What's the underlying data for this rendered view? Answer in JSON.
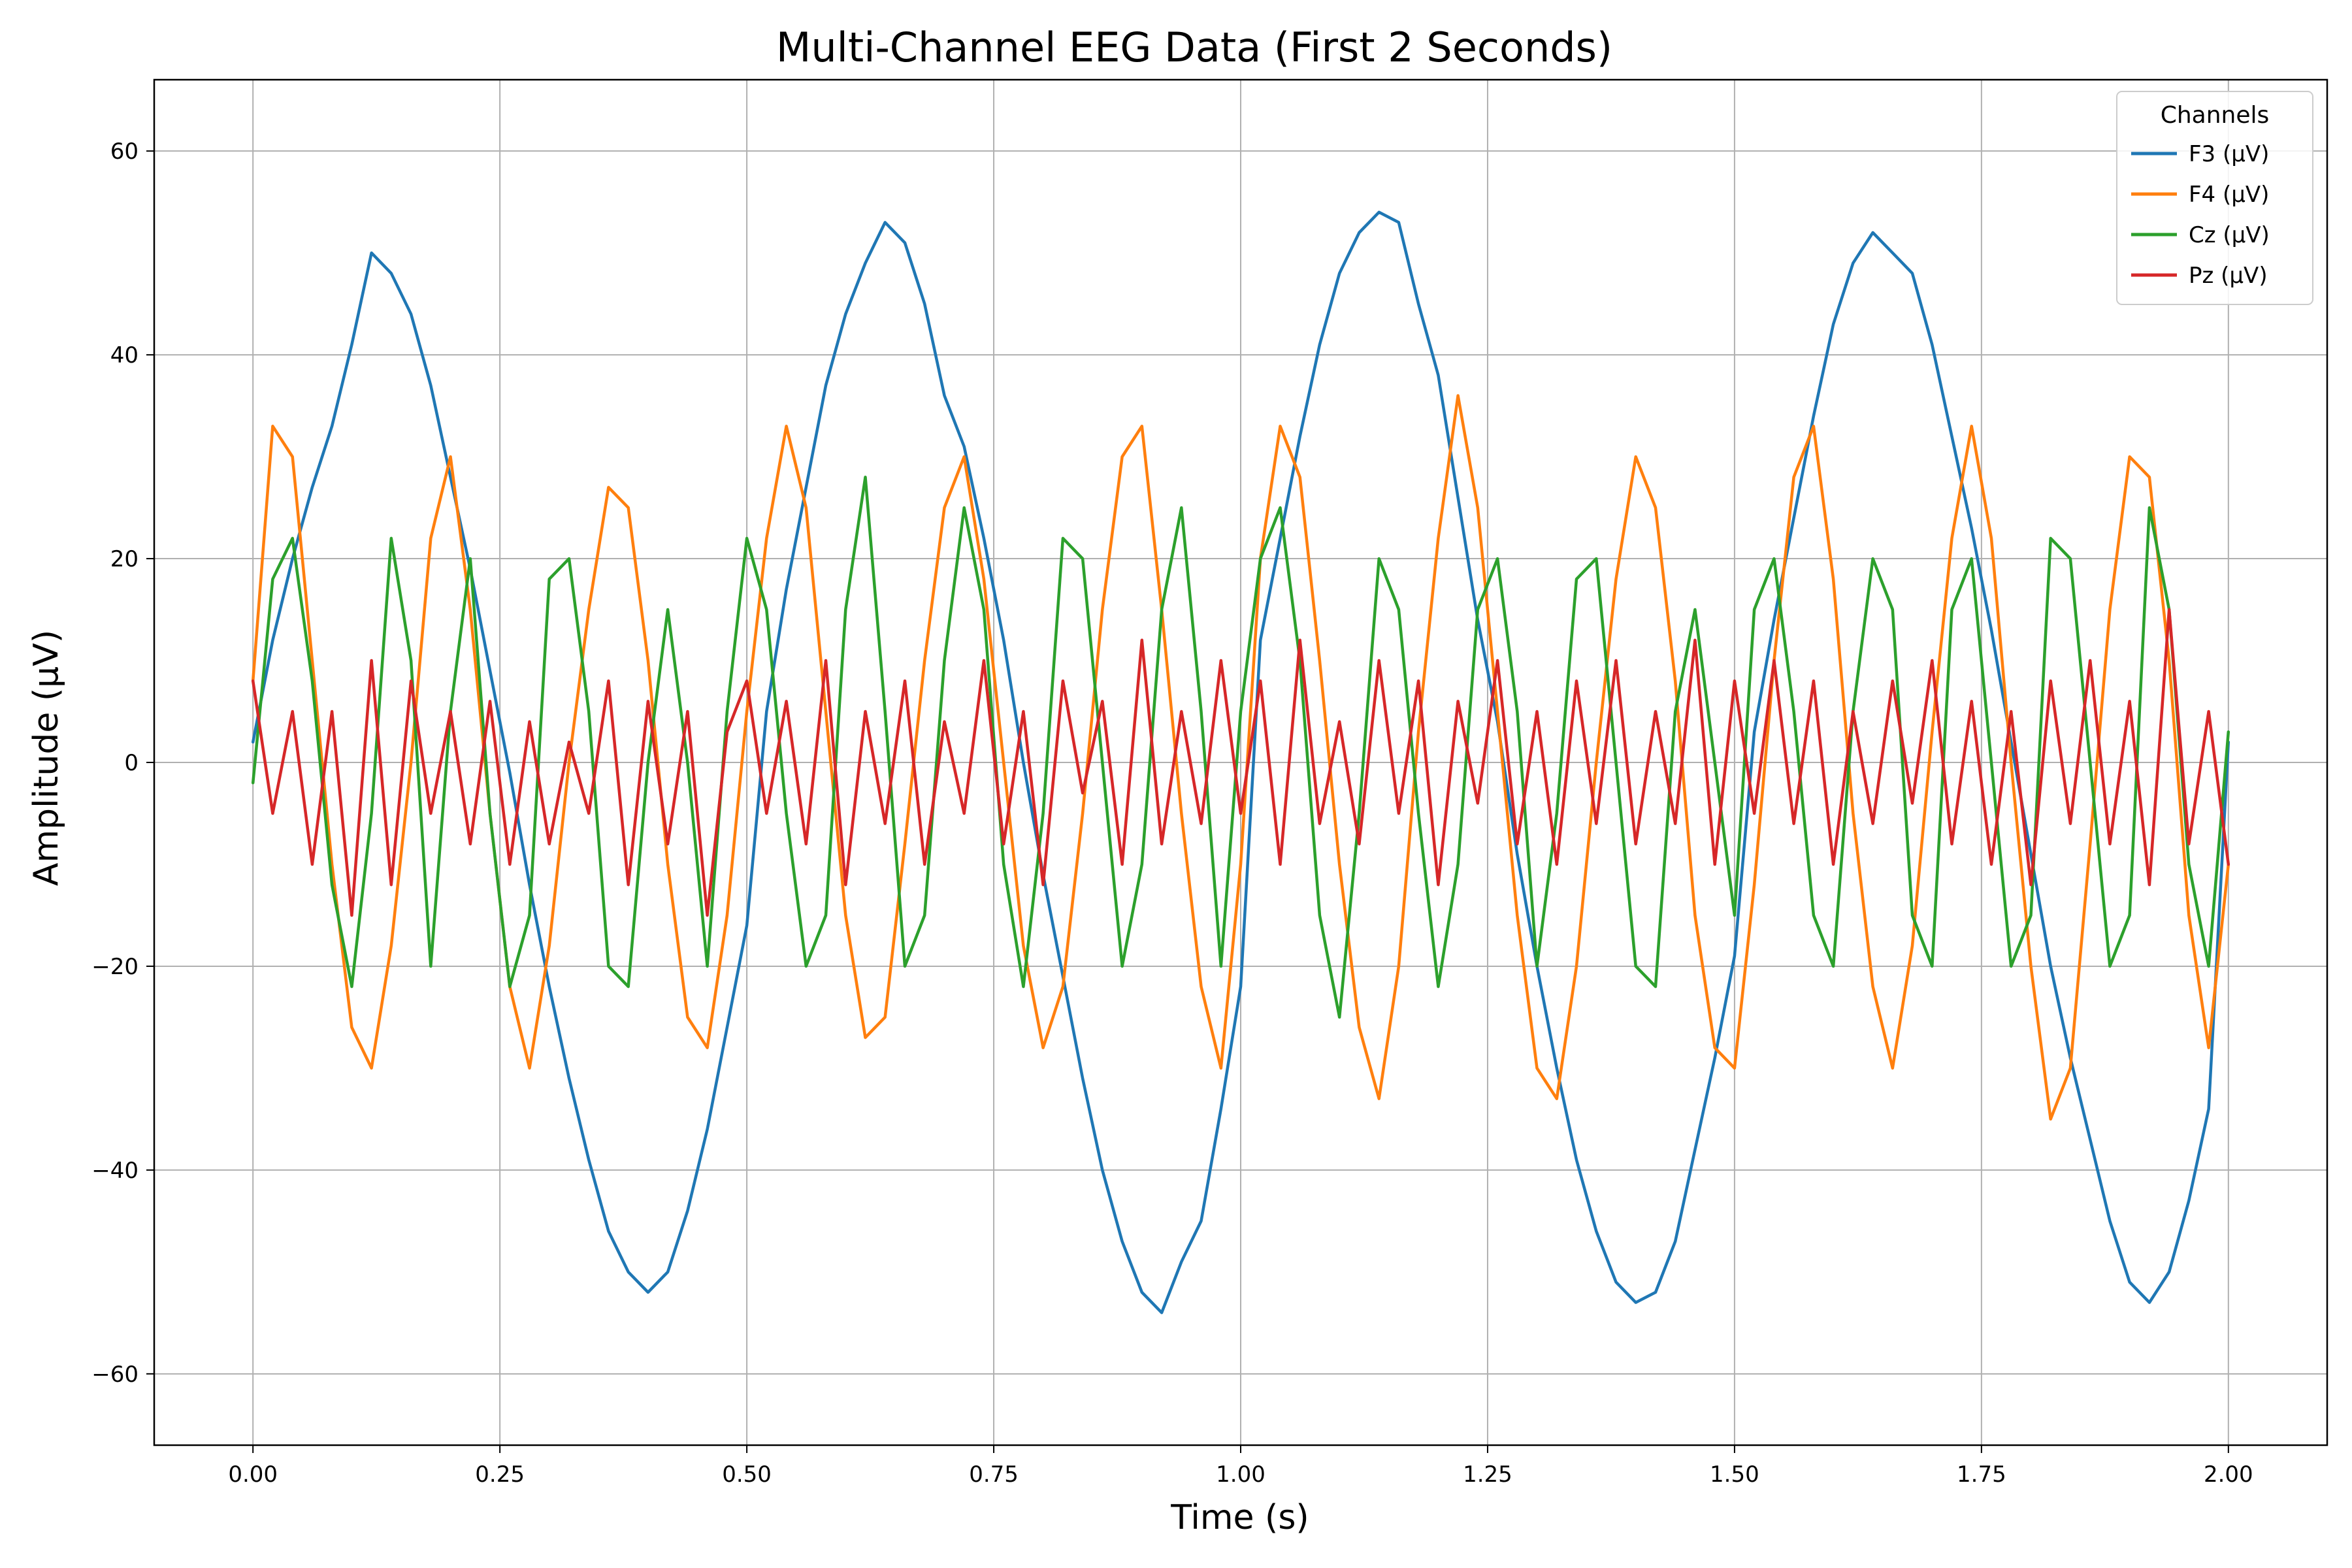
{
  "chart_data": {
    "type": "line",
    "title": "Multi-Channel EEG Data (First 2 Seconds)",
    "xlabel": "Time (s)",
    "ylabel": "Amplitude (µV)",
    "xlim": [
      -0.1,
      2.1
    ],
    "ylim": [
      -67,
      67
    ],
    "x_ticks": [
      0.0,
      0.25,
      0.5,
      0.75,
      1.0,
      1.25,
      1.5,
      1.75,
      2.0
    ],
    "x_tick_labels": [
      "0.00",
      "0.25",
      "0.50",
      "0.75",
      "1.00",
      "1.25",
      "1.50",
      "1.75",
      "2.00"
    ],
    "y_ticks": [
      -60,
      -40,
      -20,
      0,
      20,
      40,
      60
    ],
    "y_tick_labels": [
      "−60",
      "−40",
      "−20",
      "0",
      "20",
      "40",
      "60"
    ],
    "grid": true,
    "legend": {
      "title": "Channels",
      "placement": "top-right"
    },
    "x": [
      0.0,
      0.02,
      0.04,
      0.06,
      0.08,
      0.1,
      0.12,
      0.14,
      0.16,
      0.18,
      0.2,
      0.22,
      0.24,
      0.26,
      0.28,
      0.3,
      0.32,
      0.34,
      0.36,
      0.38,
      0.4,
      0.42,
      0.44,
      0.46,
      0.48,
      0.5,
      0.52,
      0.54,
      0.56,
      0.58,
      0.6,
      0.62,
      0.64,
      0.66,
      0.68,
      0.7,
      0.72,
      0.74,
      0.76,
      0.78,
      0.8,
      0.82,
      0.84,
      0.86,
      0.88,
      0.9,
      0.92,
      0.94,
      0.96,
      0.98,
      1.0,
      1.02,
      1.04,
      1.06,
      1.08,
      1.1,
      1.12,
      1.14,
      1.16,
      1.18,
      1.2,
      1.22,
      1.24,
      1.26,
      1.28,
      1.3,
      1.32,
      1.34,
      1.36,
      1.38,
      1.4,
      1.42,
      1.44,
      1.46,
      1.48,
      1.5,
      1.52,
      1.54,
      1.56,
      1.58,
      1.6,
      1.62,
      1.64,
      1.66,
      1.68,
      1.7,
      1.72,
      1.74,
      1.76,
      1.78,
      1.8,
      1.82,
      1.84,
      1.86,
      1.88,
      1.9,
      1.92,
      1.94,
      1.96,
      1.98,
      2.0
    ],
    "series": [
      {
        "name": "F3 (µV)",
        "color": "#1f77b4",
        "values": [
          2,
          12,
          20,
          27,
          33,
          41,
          50,
          48,
          44,
          37,
          28,
          19,
          9,
          -1,
          -12,
          -22,
          -31,
          -39,
          -46,
          -50,
          -52,
          -50,
          -44,
          -36,
          -26,
          -16,
          5,
          17,
          27,
          37,
          44,
          49,
          53,
          51,
          45,
          36,
          31,
          22,
          12,
          0,
          -11,
          -21,
          -31,
          -40,
          -47,
          -52,
          -54,
          -49,
          -45,
          -34,
          -22,
          12,
          22,
          32,
          41,
          48,
          52,
          54,
          53,
          45,
          38,
          26,
          14,
          4,
          -9,
          -20,
          -30,
          -39,
          -46,
          -51,
          -53,
          -52,
          -47,
          -38,
          -29,
          -19,
          3,
          14,
          24,
          34,
          43,
          49,
          52,
          50,
          48,
          41,
          32,
          23,
          13,
          2,
          -9,
          -20,
          -29,
          -37,
          -45,
          -51,
          -53,
          -50,
          -43,
          -34,
          2
        ]
      },
      {
        "name": "F4 (µV)",
        "color": "#ff7f0e",
        "values": [
          8,
          33,
          30,
          10,
          -10,
          -26,
          -30,
          -18,
          0,
          22,
          30,
          15,
          -5,
          -22,
          -30,
          -18,
          0,
          15,
          27,
          25,
          10,
          -10,
          -25,
          -28,
          -15,
          5,
          22,
          33,
          25,
          5,
          -15,
          -27,
          -25,
          -8,
          10,
          25,
          30,
          18,
          0,
          -18,
          -28,
          -22,
          -5,
          15,
          30,
          33,
          15,
          -5,
          -22,
          -30,
          -10,
          20,
          33,
          28,
          10,
          -10,
          -26,
          -33,
          -20,
          3,
          22,
          36,
          25,
          5,
          -15,
          -30,
          -33,
          -20,
          0,
          18,
          30,
          25,
          8,
          -15,
          -28,
          -30,
          -12,
          10,
          28,
          33,
          18,
          -5,
          -22,
          -30,
          -18,
          3,
          22,
          33,
          22,
          0,
          -20,
          -35,
          -30,
          -8,
          15,
          30,
          28,
          10,
          -15,
          -28,
          -10
        ]
      },
      {
        "name": "Cz (µV)",
        "color": "#2ca02c",
        "values": [
          -2,
          18,
          22,
          8,
          -12,
          -22,
          -5,
          22,
          10,
          -20,
          5,
          20,
          -5,
          -22,
          -15,
          18,
          20,
          5,
          -20,
          -22,
          0,
          15,
          0,
          -20,
          5,
          22,
          15,
          -5,
          -20,
          -15,
          15,
          28,
          5,
          -20,
          -15,
          10,
          25,
          15,
          -10,
          -22,
          -5,
          22,
          20,
          0,
          -20,
          -10,
          15,
          25,
          5,
          -20,
          5,
          20,
          25,
          10,
          -15,
          -25,
          -5,
          20,
          15,
          -5,
          -22,
          -10,
          15,
          20,
          5,
          -20,
          -5,
          18,
          20,
          0,
          -20,
          -22,
          5,
          15,
          0,
          -15,
          15,
          20,
          5,
          -15,
          -20,
          5,
          20,
          15,
          -15,
          -20,
          15,
          20,
          0,
          -20,
          -15,
          22,
          20,
          0,
          -20,
          -15,
          25,
          15,
          -10,
          -20,
          3
        ]
      },
      {
        "name": "Pz (µV)",
        "color": "#d62728",
        "values": [
          8,
          -5,
          5,
          -10,
          5,
          -15,
          10,
          -12,
          8,
          -5,
          5,
          -8,
          6,
          -10,
          4,
          -8,
          2,
          -5,
          8,
          -12,
          6,
          -8,
          5,
          -15,
          3,
          8,
          -5,
          6,
          -8,
          10,
          -12,
          5,
          -6,
          8,
          -10,
          4,
          -5,
          10,
          -8,
          5,
          -12,
          8,
          -3,
          6,
          -10,
          12,
          -8,
          5,
          -6,
          10,
          -5,
          8,
          -10,
          12,
          -6,
          4,
          -8,
          10,
          -5,
          8,
          -12,
          6,
          -4,
          10,
          -8,
          5,
          -10,
          8,
          -6,
          10,
          -8,
          5,
          -6,
          12,
          -10,
          8,
          -5,
          10,
          -6,
          8,
          -10,
          5,
          -6,
          8,
          -4,
          10,
          -8,
          6,
          -10,
          5,
          -12,
          8,
          -6,
          10,
          -8,
          6,
          -12,
          15,
          -8,
          5,
          -10
        ]
      }
    ]
  }
}
